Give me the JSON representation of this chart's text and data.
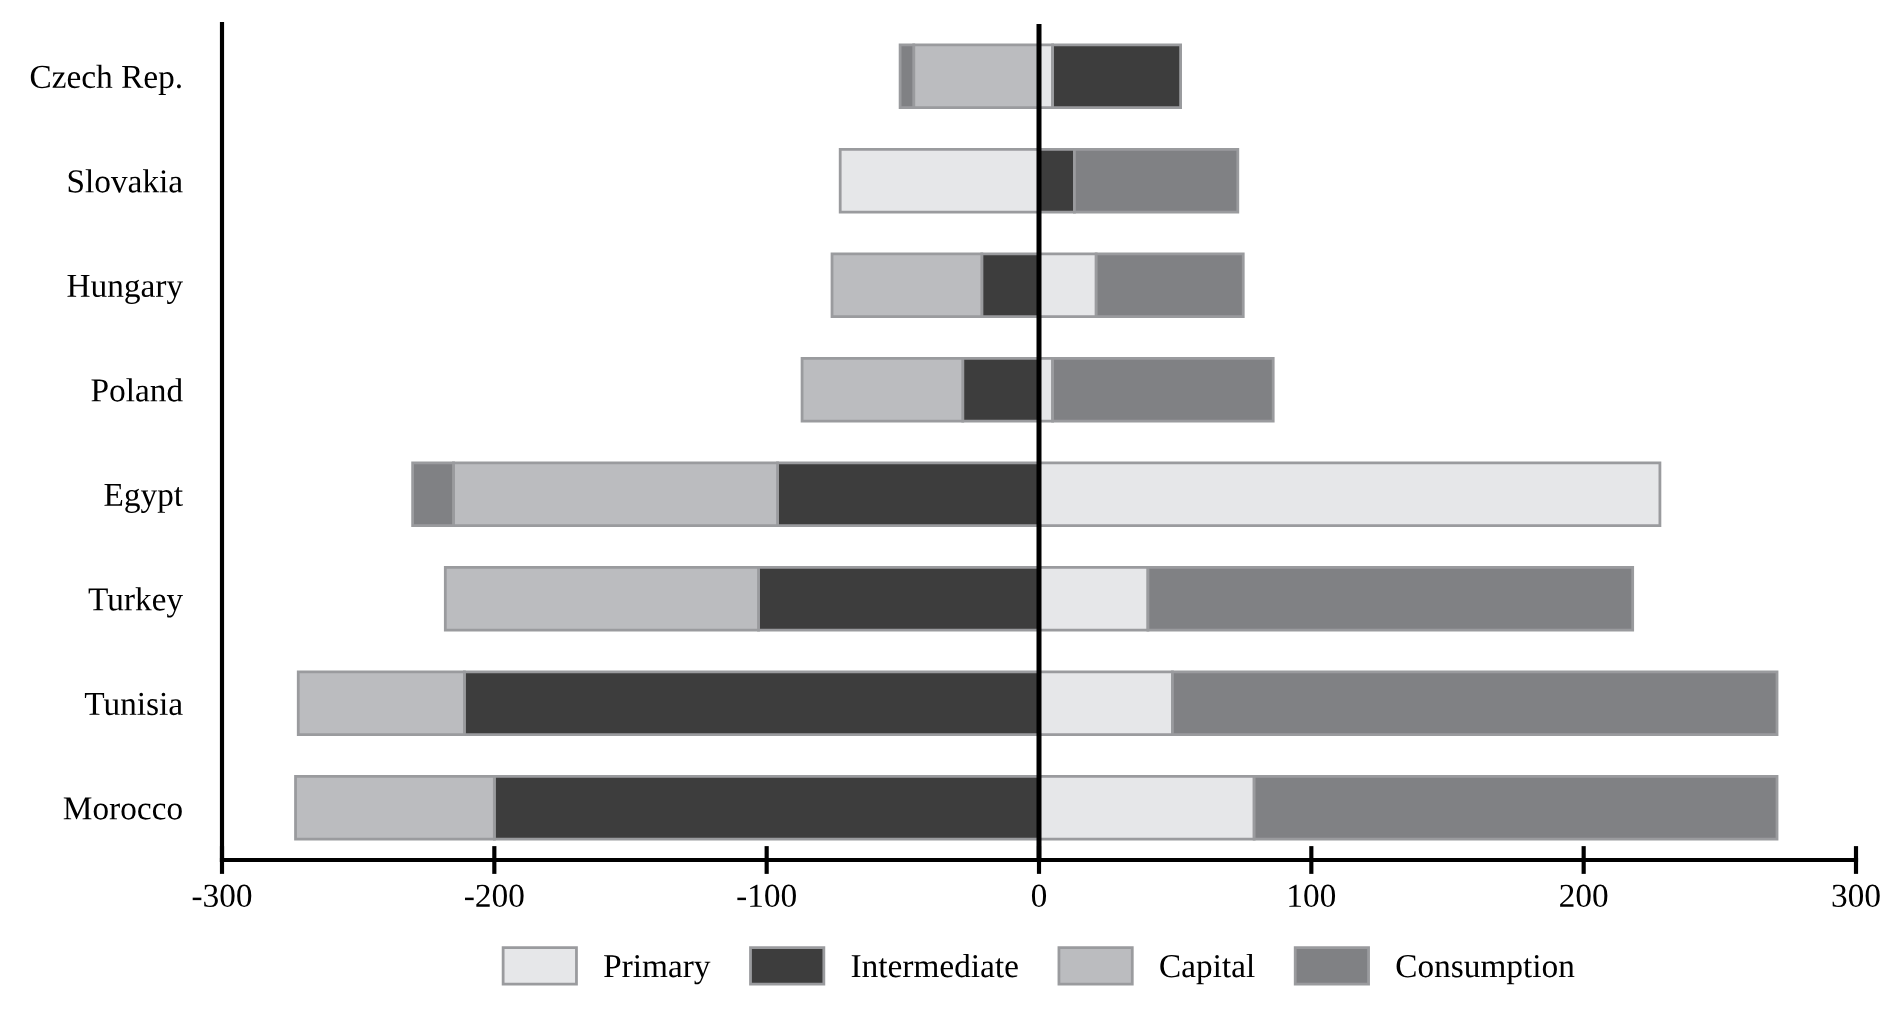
{
  "chart_data": {
    "type": "bar",
    "orientation": "horizontal",
    "stacked": true,
    "categories": [
      "Czech Rep.",
      "Slovakia",
      "Hungary",
      "Poland",
      "Egypt",
      "Turkey",
      "Tunisia",
      "Morocco"
    ],
    "series": [
      {
        "name": "Primary",
        "color": "#e6e7e9",
        "values": [
          5,
          -73,
          21,
          5,
          228,
          40,
          49,
          79
        ]
      },
      {
        "name": "Intermediate",
        "color": "#3d3d3d",
        "values": [
          47,
          13,
          -21,
          -28,
          -96,
          -103,
          -211,
          -200
        ]
      },
      {
        "name": "Capital",
        "color": "#bbbcbf",
        "values": [
          -46,
          null,
          -55,
          -59,
          -119,
          -115,
          -61,
          -73
        ]
      },
      {
        "name": "Consumption",
        "color": "#808184",
        "values": [
          -5,
          60,
          54,
          81,
          -15,
          178,
          222,
          192
        ]
      }
    ],
    "xlim": [
      -300,
      300
    ],
    "xticks": [
      -300,
      -200,
      -100,
      0,
      100,
      200,
      300
    ],
    "ref_lines": [
      {
        "axis": "x",
        "value": 0,
        "color": "#000000"
      }
    ],
    "grid": false,
    "legend": "bottom"
  }
}
